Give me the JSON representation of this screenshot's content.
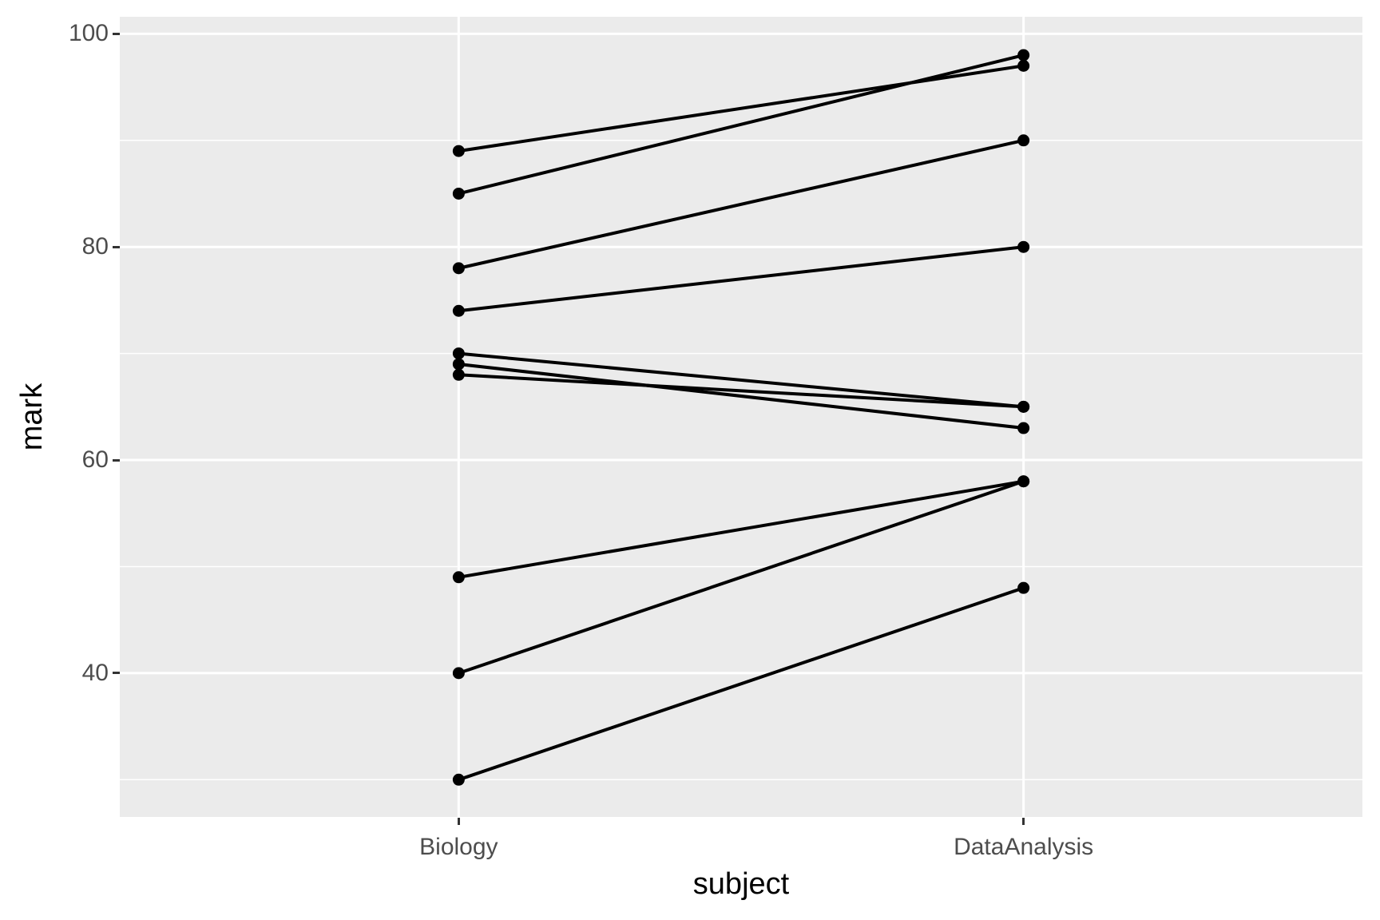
{
  "chart_data": {
    "type": "line",
    "subtype": "paired-slope-chart",
    "title": "",
    "xlabel": "subject",
    "ylabel": "mark",
    "categories": [
      "Biology",
      "DataAnalysis"
    ],
    "series": [
      {
        "name": "pair-1",
        "values": [
          89,
          97
        ]
      },
      {
        "name": "pair-2",
        "values": [
          85,
          98
        ]
      },
      {
        "name": "pair-3",
        "values": [
          78,
          90
        ]
      },
      {
        "name": "pair-4",
        "values": [
          74,
          80
        ]
      },
      {
        "name": "pair-5",
        "values": [
          70,
          65
        ]
      },
      {
        "name": "pair-6",
        "values": [
          69,
          63
        ]
      },
      {
        "name": "pair-7",
        "values": [
          68,
          65
        ]
      },
      {
        "name": "pair-8",
        "values": [
          49,
          58
        ]
      },
      {
        "name": "pair-9",
        "values": [
          40,
          58
        ]
      },
      {
        "name": "pair-10",
        "values": [
          30,
          48
        ]
      }
    ],
    "y_ticks_major": [
      40,
      60,
      80,
      100
    ],
    "y_ticks_minor": [
      30,
      50,
      70,
      90
    ],
    "ylim": [
      26.5,
      101.6
    ],
    "grid": true,
    "legend": "none",
    "colors": {
      "page_bg": "#FFFFFF",
      "panel_bg": "#EBEBEB",
      "grid": "#FFFFFF",
      "line": "#000000",
      "point": "#000000",
      "tick_label": "#4D4D4D",
      "tick_mark": "#333333",
      "axis_title": "#000000"
    }
  }
}
